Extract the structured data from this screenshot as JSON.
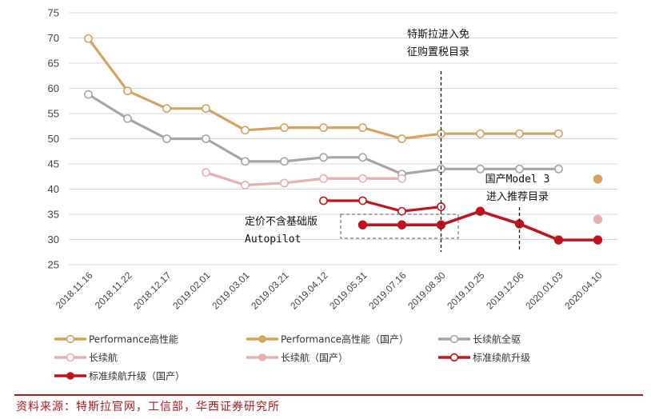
{
  "chart_data": {
    "type": "line",
    "categories": [
      "2018.11.16",
      "2018.11.22",
      "2018.12.17",
      "2019.02.01",
      "2019.03.01",
      "2019.03.21",
      "2019.04.12",
      "2019.05.31",
      "2019.07.16",
      "2019.08.30",
      "2019.10.25",
      "2019.12.06",
      "2020.01.03",
      "2020.04.10"
    ],
    "ylim": [
      25,
      75
    ],
    "yticks": [
      25,
      30,
      35,
      40,
      45,
      50,
      55,
      60,
      65,
      70,
      75
    ],
    "grid": true,
    "legend_position": "bottom",
    "series": [
      {
        "name": "Performance高性能",
        "color": "#d4a35f",
        "marker": "hollow",
        "values": [
          69.9,
          59.5,
          56.0,
          56.0,
          51.7,
          52.2,
          52.2,
          52.2,
          50.0,
          51.0,
          51.0,
          51.0,
          51.0,
          null
        ]
      },
      {
        "name": "Performance高性能（国产）",
        "color": "#d4a35f",
        "marker": "filled",
        "values": [
          null,
          null,
          null,
          null,
          null,
          null,
          null,
          null,
          null,
          null,
          null,
          null,
          null,
          42.0
        ]
      },
      {
        "name": "长续航全驱",
        "color": "#a6a6a6",
        "marker": "hollow",
        "values": [
          58.8,
          54.0,
          50.0,
          50.0,
          45.5,
          45.5,
          46.3,
          46.3,
          43.0,
          44.0,
          44.0,
          44.0,
          44.0,
          null
        ]
      },
      {
        "name": "长续航",
        "color": "#e6b0b0",
        "marker": "hollow",
        "values": [
          null,
          null,
          null,
          43.3,
          40.8,
          41.2,
          42.1,
          42.1,
          42.1,
          null,
          null,
          null,
          null,
          null
        ]
      },
      {
        "name": "长续航（国产）",
        "color": "#e6b0b0",
        "marker": "filled",
        "values": [
          null,
          null,
          null,
          null,
          null,
          null,
          null,
          null,
          null,
          null,
          null,
          null,
          null,
          34.0
        ]
      },
      {
        "name": "标准续航升级",
        "color": "#c0141c",
        "marker": "hollow",
        "values": [
          null,
          null,
          null,
          null,
          null,
          null,
          37.7,
          37.7,
          35.6,
          36.5,
          null,
          null,
          null,
          null
        ]
      },
      {
        "name": "标准续航升级（国产）",
        "color": "#c0141c",
        "marker": "filled",
        "values": [
          null,
          null,
          null,
          null,
          null,
          null,
          null,
          32.9,
          32.9,
          32.9,
          35.6,
          33.1,
          29.9,
          29.9
        ]
      }
    ],
    "annotations": [
      {
        "lines": [
          "特斯拉进入免",
          "征购置税目录"
        ],
        "category_index": 9
      },
      {
        "lines": [
          "国产Model 3",
          "进入推荐目录"
        ],
        "category_index": 11
      },
      {
        "lines": [
          "定价不含基础版",
          "Autopilot"
        ],
        "category_index": 7
      }
    ]
  },
  "source": "资料来源：特斯拉官网，工信部，华西证券研究所"
}
